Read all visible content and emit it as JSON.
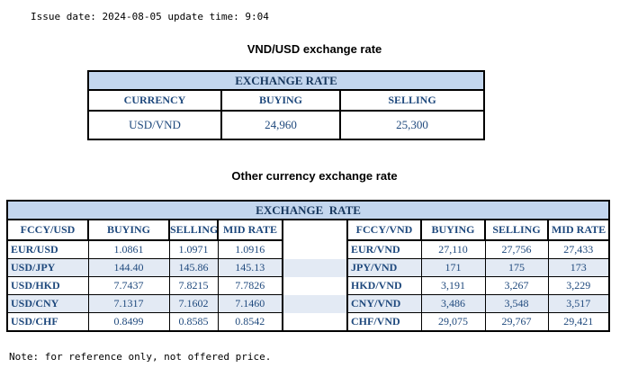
{
  "page": {
    "issue_line": "Issue date: 2024-08-05 update time: 9:04",
    "note": "Note: for reference only, not offered price."
  },
  "colors": {
    "banner_bg": "#c3d6ee",
    "banner_text": "#17375d",
    "table_text": "#1f497d",
    "stripe_bg": "#e3eaf4",
    "border": "#000000"
  },
  "usd_table": {
    "title": "VND/USD exchange rate",
    "banner": "EXCHANGE RATE",
    "headers": [
      "CURRENCY",
      "BUYING",
      "SELLING"
    ],
    "rows": [
      [
        "USD/VND",
        "24,960",
        "25,300"
      ]
    ]
  },
  "other_table": {
    "title": "Other currency exchange rate",
    "banner": "EXCHANGE  RATE",
    "left": {
      "headers": [
        "FCCY/USD",
        "BUYING",
        "SELLING",
        "MID RATE"
      ],
      "rows": [
        [
          "EUR/USD",
          "1.0861",
          "1.0971",
          "1.0916"
        ],
        [
          "USD/JPY",
          "144.40",
          "145.86",
          "145.13"
        ],
        [
          "USD/HKD",
          "7.7437",
          "7.8215",
          "7.7826"
        ],
        [
          "USD/CNY",
          "7.1317",
          "7.1602",
          "7.1460"
        ],
        [
          "USD/CHF",
          "0.8499",
          "0.8585",
          "0.8542"
        ]
      ]
    },
    "right": {
      "headers": [
        "FCCY/VND",
        "BUYING",
        "SELLING",
        "MID RATE"
      ],
      "rows": [
        [
          "EUR/VND",
          "27,110",
          "27,756",
          "27,433"
        ],
        [
          "JPY/VND",
          "171",
          "175",
          "173"
        ],
        [
          "HKD/VND",
          "3,191",
          "3,267",
          "3,229"
        ],
        [
          "CNY/VND",
          "3,486",
          "3,548",
          "3,517"
        ],
        [
          "CHF/VND",
          "29,075",
          "29,767",
          "29,421"
        ]
      ]
    }
  }
}
